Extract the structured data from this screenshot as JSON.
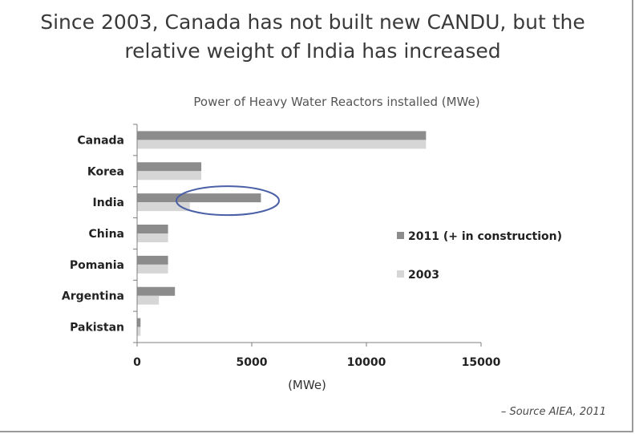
{
  "slide": {
    "title_line1": "Since 2003, Canada has not built new CANDU, but the",
    "title_line2": "relative weight of India has increased",
    "source": "– Source AIEA, 2011"
  },
  "colors": {
    "series_2011": "#8c8c8c",
    "series_2003": "#d6d6d6",
    "highlight_ellipse": "#4a5fa5",
    "axis": "#7f7f7f"
  },
  "chart_data": {
    "type": "bar",
    "orientation": "horizontal",
    "title": "Power of Heavy Water Reactors installed (MWe)",
    "xlabel": "(MWe)",
    "ylabel": "",
    "categories": [
      "Canada",
      "Korea",
      "India",
      "China",
      "Pomania",
      "Argentina",
      "Pakistan"
    ],
    "series": [
      {
        "name": "2011 (+ in construction)",
        "values": [
          12600,
          2800,
          5400,
          1350,
          1350,
          1650,
          150
        ]
      },
      {
        "name": "2003",
        "values": [
          12600,
          2800,
          2300,
          1350,
          1350,
          950,
          150
        ]
      }
    ],
    "xlim": [
      0,
      15000
    ],
    "xticks": [
      0,
      5000,
      10000,
      15000
    ],
    "tick_labels": [
      "0",
      "5000",
      "10000",
      "15000"
    ],
    "grid": false,
    "legend": "right",
    "annotation": "ellipse highlighting India"
  }
}
